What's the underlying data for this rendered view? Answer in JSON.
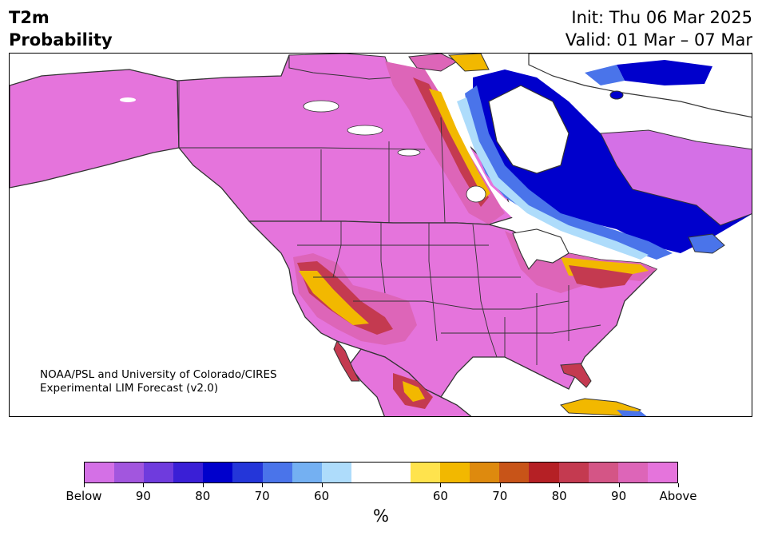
{
  "title": {
    "left_line1": "T2m",
    "left_line2": "Probability",
    "init": "Init: Thu 06 Mar 2025",
    "valid": "Valid: 01 Mar – 07 Mar"
  },
  "credit": {
    "line1": "NOAA/PSL and University of Colorado/CIRES",
    "line2": "Experimental LIM Forecast (v2.0)"
  },
  "colorbar": {
    "unit": "%",
    "colors": [
      "#d470e6",
      "#a256de",
      "#6f3bdd",
      "#3a1fd6",
      "#0000cc",
      "#2436d9",
      "#4a74ea",
      "#74b0f2",
      "#aedcfb",
      "#ffffff",
      "#ffffff",
      "#ffe34d",
      "#f2b800",
      "#de8a0e",
      "#c85418",
      "#b52025",
      "#c43a50",
      "#d45586",
      "#dd65b8",
      "#e574dc"
    ],
    "tick_labels": [
      "Below",
      "90",
      "80",
      "70",
      "60",
      "60",
      "70",
      "80",
      "90",
      "Above"
    ]
  },
  "map": {
    "region": "North America",
    "colors": {
      "above_max": "#e574dc",
      "above_90": "#dd65b8",
      "above_80": "#c43a50",
      "above_70": "#c85418",
      "above_60": "#f2b800",
      "below_60": "#aedcfb",
      "below_70": "#4a74ea",
      "below_80": "#0000cc",
      "below_max": "#d470e6",
      "neutral": "#ffffff",
      "border": "#333333"
    }
  }
}
